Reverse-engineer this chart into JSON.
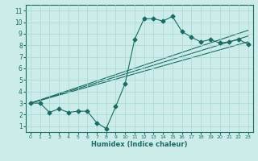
{
  "xlabel": "Humidex (Indice chaleur)",
  "bg_color": "#ccecea",
  "grid_color": "#a8d8d4",
  "line_color": "#1a6b62",
  "xlim": [
    -0.5,
    23.5
  ],
  "ylim": [
    0.5,
    11.5
  ],
  "xticks": [
    0,
    1,
    2,
    3,
    4,
    5,
    6,
    7,
    8,
    9,
    10,
    11,
    12,
    13,
    14,
    15,
    16,
    17,
    18,
    19,
    20,
    21,
    22,
    23
  ],
  "yticks": [
    1,
    2,
    3,
    4,
    5,
    6,
    7,
    8,
    9,
    10,
    11
  ],
  "line1_x": [
    0,
    1,
    2,
    3,
    4,
    5,
    6,
    7,
    8,
    9,
    10,
    11,
    12,
    13,
    14,
    15,
    16,
    17,
    18,
    19,
    20,
    21,
    22,
    23
  ],
  "line1_y": [
    3.0,
    3.0,
    2.2,
    2.5,
    2.2,
    2.3,
    2.3,
    1.3,
    0.8,
    2.7,
    4.7,
    8.5,
    10.3,
    10.3,
    10.1,
    10.5,
    9.2,
    8.7,
    8.3,
    8.5,
    8.2,
    8.3,
    8.5,
    8.1
  ],
  "trend1_x": [
    0,
    23
  ],
  "trend1_y": [
    3.0,
    8.3
  ],
  "trend2_x": [
    0,
    23
  ],
  "trend2_y": [
    3.0,
    8.8
  ],
  "trend3_x": [
    0,
    23
  ],
  "trend3_y": [
    3.0,
    9.3
  ]
}
